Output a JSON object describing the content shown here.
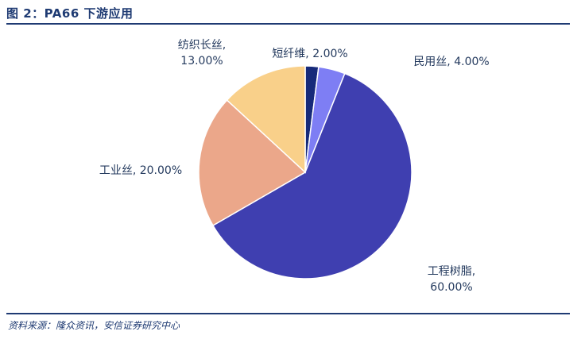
{
  "header": {
    "title": "图 2：PA66 下游应用"
  },
  "footer": {
    "source": "资料来源：隆众资讯，安信证券研究中心"
  },
  "chart_data": {
    "type": "pie",
    "title": "",
    "start_angle_deg": 0,
    "direction": "clockwise",
    "slices": [
      {
        "label_lines": [
          "短纤维, 2.00%"
        ],
        "value": 2,
        "color": "#162a7a"
      },
      {
        "label_lines": [
          "民用丝, 4.00%"
        ],
        "value": 4,
        "color": "#7e7ef4"
      },
      {
        "label_lines": [
          "工程树脂,",
          "60.00%"
        ],
        "value": 60,
        "color": "#3f3fb0"
      },
      {
        "label_lines": [
          "工业丝, 20.00%"
        ],
        "value": 20,
        "color": "#eba78a"
      },
      {
        "label_lines": [
          "纺织长丝,",
          "13.00%"
        ],
        "value": 13,
        "color": "#f9d08a"
      }
    ]
  }
}
